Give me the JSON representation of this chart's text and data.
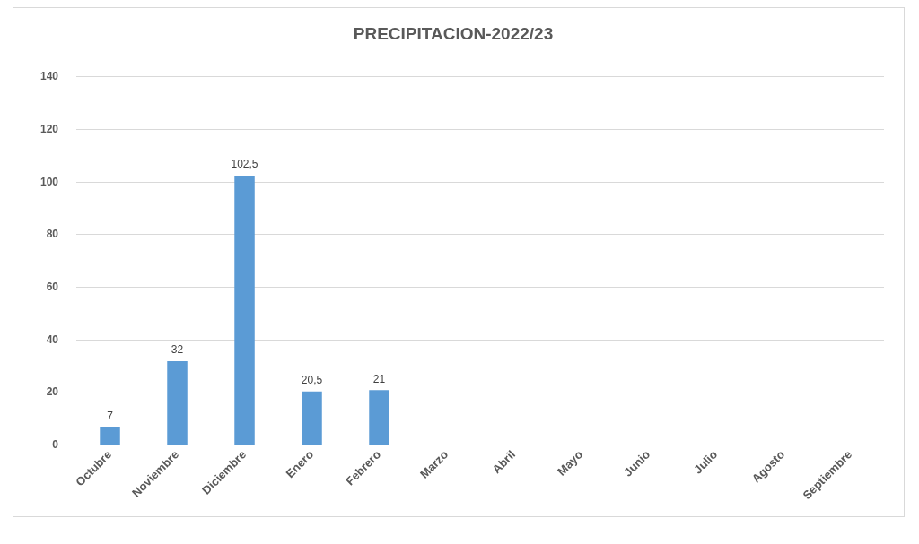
{
  "chart_data": {
    "type": "bar",
    "title": "PRECIPITACION-2022/23",
    "categories": [
      "Octubre",
      "Noviembre",
      "Diciembre",
      "Enero",
      "Febrero",
      "Marzo",
      "Abril",
      "Mayo",
      "Junio",
      "Julio",
      "Agosto",
      "Septiembre"
    ],
    "values": [
      7,
      32,
      102.5,
      20.5,
      21,
      null,
      null,
      null,
      null,
      null,
      null,
      null
    ],
    "value_labels": [
      "7",
      "32",
      "102,5",
      "20,5",
      "21",
      null,
      null,
      null,
      null,
      null,
      null,
      null
    ],
    "color": "#5b9bd5",
    "ylim": [
      0,
      140
    ],
    "yticks": [
      0,
      20,
      40,
      60,
      80,
      100,
      120,
      140
    ],
    "grid": "y",
    "legend": false
  }
}
